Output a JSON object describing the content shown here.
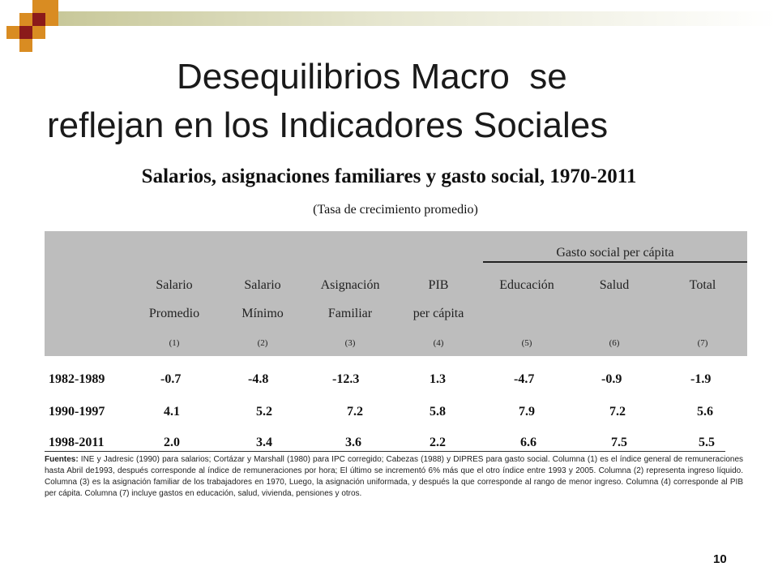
{
  "slide": {
    "title_line1": "Desequilibrios Macro  se",
    "title_line2": "reflejan en los Indicadores Sociales",
    "page_number": "10",
    "colors": {
      "square_orange": "#d98c22",
      "square_red": "#8b1a1a",
      "header_fill": "#bdbdbd"
    }
  },
  "table": {
    "title": "Salarios, asignaciones familiares y gasto social, 1970-2011",
    "subtitle": "(Tasa de crecimiento promedio)",
    "group_header": "Gasto social per cápita",
    "columns": [
      {
        "line1": "Salario",
        "line2": "Promedio",
        "num": "(1)"
      },
      {
        "line1": "Salario",
        "line2": "Mínimo",
        "num": "(2)"
      },
      {
        "line1": "Asignación",
        "line2": "Familiar",
        "num": "(3)"
      },
      {
        "line1": "PIB",
        "line2": "per cápita",
        "num": "(4)"
      },
      {
        "line1": "Educación",
        "line2": "",
        "num": "(5)"
      },
      {
        "line1": "Salud",
        "line2": "",
        "num": "(6)"
      },
      {
        "line1": "Total",
        "line2": "",
        "num": "(7)"
      }
    ],
    "rows": [
      {
        "period": "1982-1989",
        "values": [
          "-0.7",
          "-4.8",
          "-12.3",
          "1.3",
          "-4.7",
          "-0.9",
          "-1.9"
        ]
      },
      {
        "period": "1990-1997",
        "values": [
          "4.1",
          "5.2",
          "7.2",
          "5.8",
          "7.9",
          "7.2",
          "5.6"
        ]
      },
      {
        "period": "1998-2011",
        "values": [
          "2.0",
          "3.4",
          "3.6",
          "2.2",
          "6.6",
          "7.5",
          "5.5"
        ]
      }
    ],
    "notes_label": "Fuentes:",
    "notes_text": "INE y Jadresic (1990) para salarios; Cortázar y Marshall (1980) para IPC corregido; Cabezas (1988) y DIPRES  para gasto social. Columna (1) es el índice general de remuneraciones hasta Abril de1993, después corresponde al índice de remuneraciones por hora; El último se incrementó 6% más que el otro índice entre 1993 y 2005. Columna (2) representa ingreso líquido. Columna (3) es la asignación familiar de los trabajadores en 1970, Luego, la asignación uniformada, y después la que corresponde al rango de menor ingreso. Columna (4) corresponde al PIB per cápita. Columna (7) incluye gastos en educación, salud, vivienda, pensiones y otros."
  }
}
